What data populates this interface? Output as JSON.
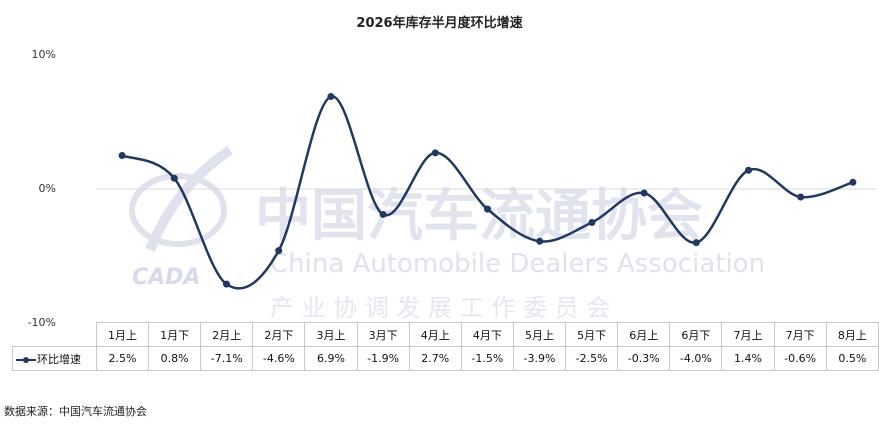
{
  "chart_data": {
    "type": "line",
    "title": "2026年库存半月度环比增速",
    "categories": [
      "1月上",
      "1月下",
      "2月上",
      "2月下",
      "3月上",
      "3月下",
      "4月上",
      "4月下",
      "5月上",
      "5月下",
      "6月上",
      "6月下",
      "7月上",
      "7月下",
      "8月上"
    ],
    "series": [
      {
        "name": "环比增速",
        "values": [
          2.5,
          0.8,
          -7.1,
          -4.6,
          6.9,
          -1.9,
          2.7,
          -1.5,
          -3.9,
          -2.5,
          -0.3,
          -4.0,
          1.4,
          -0.6,
          0.5
        ],
        "labels": [
          "2.5%",
          "0.8%",
          "-7.1%",
          "-4.6%",
          "6.9%",
          "-1.9%",
          "2.7%",
          "-1.5%",
          "-3.9%",
          "-2.5%",
          "-0.3%",
          "-4.0%",
          "1.4%",
          "-0.6%",
          "0.5%"
        ]
      }
    ],
    "ylim": [
      -10,
      10
    ],
    "yticks": [
      "10%",
      "0%",
      "-10%"
    ],
    "line_color": "#1f3864",
    "smooth": true,
    "data_table": true
  },
  "watermark": {
    "logo_text": "CADA",
    "name_cn": "中国汽车流通协会",
    "name_en": "China Automobile Dealers Association",
    "sub_cn": "产 业 协 调 发 展 工 作 委 员 会",
    "color": "#c5cbe0"
  },
  "source_note": "数据来源：中国汽车流通协会"
}
